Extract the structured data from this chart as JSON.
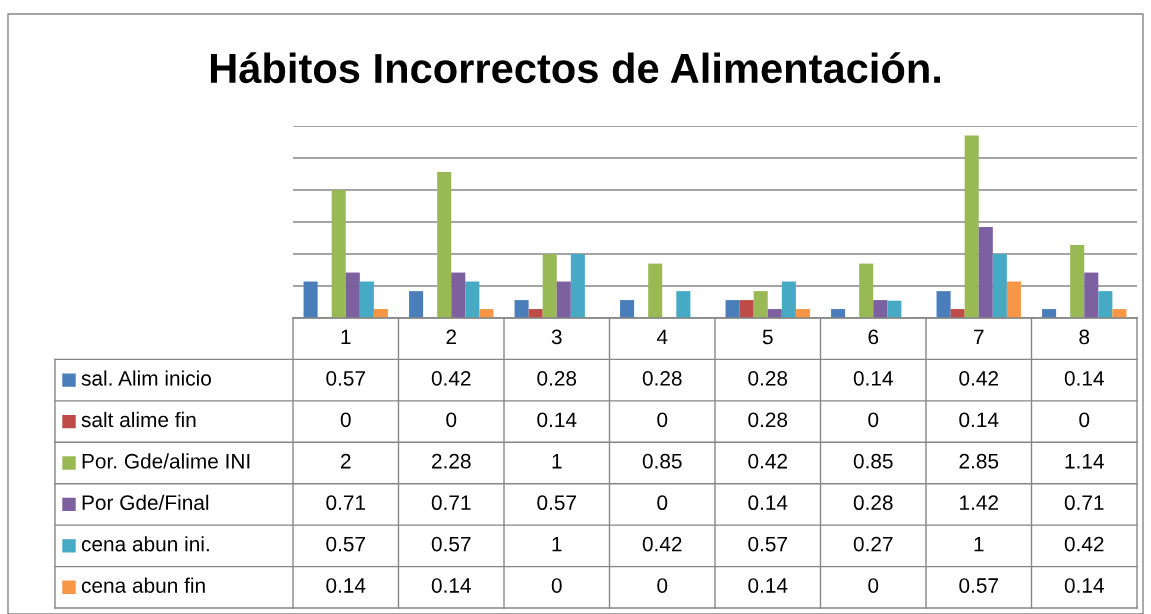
{
  "chart_data": {
    "type": "bar",
    "title": "Hábitos Incorrectos de Alimentación.",
    "categories": [
      "1",
      "2",
      "3",
      "4",
      "5",
      "6",
      "7",
      "8"
    ],
    "series": [
      {
        "name": "sal. Alim inicio",
        "color": "#4a7ebb",
        "values": [
          0.57,
          0.42,
          0.28,
          0.28,
          0.28,
          0.14,
          0.42,
          0.14
        ]
      },
      {
        "name": "salt alime fin",
        "color": "#be4b48",
        "values": [
          0,
          0,
          0.14,
          0,
          0.28,
          0,
          0.14,
          0
        ]
      },
      {
        "name": "Por. Gde/alime INI",
        "color": "#98b954",
        "values": [
          2,
          2.28,
          1,
          0.85,
          0.42,
          0.85,
          2.85,
          1.14
        ]
      },
      {
        "name": "Por Gde/Final",
        "color": "#7d60a0",
        "values": [
          0.71,
          0.71,
          0.57,
          0,
          0.14,
          0.28,
          1.42,
          0.71
        ]
      },
      {
        "name": "cena abun ini.",
        "color": "#46aac5",
        "values": [
          0.57,
          0.57,
          1,
          0.42,
          0.57,
          0.27,
          1,
          0.42
        ]
      },
      {
        "name": "cena abun fin",
        "color": "#f79646",
        "values": [
          0.14,
          0.14,
          0,
          0,
          0.14,
          0,
          0.57,
          0.14
        ]
      }
    ],
    "ylim": [
      0,
      3
    ],
    "yticks": [
      {
        "value": 0,
        "label": null
      },
      {
        "value": 0.5,
        "label": null
      },
      {
        "value": 1,
        "label": null
      },
      {
        "value": 1.5,
        "label": null
      },
      {
        "value": 2,
        "label": null
      },
      {
        "value": 2.5,
        "label": null
      },
      {
        "value": 3,
        "label": null
      }
    ],
    "grid": "y",
    "tick_labels": "x",
    "data_labels": true,
    "legend": "bottom left"
  }
}
